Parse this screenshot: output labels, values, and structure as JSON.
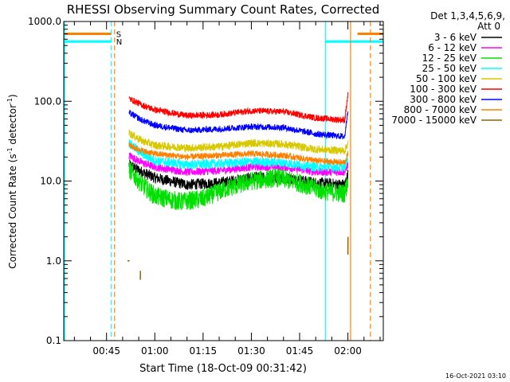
{
  "chart_data": {
    "type": "line",
    "title": "RHESSI Observing Summary Count Rates, Corrected",
    "xlabel": "Start Time (18-Oct-09 00:31:42)",
    "ylabel": "Corrected Count Rate (s⁻¹ detector⁻¹)",
    "ylabel_main": "Corrected Count Rate (s",
    "ylabel_sup1": "-1",
    "ylabel_mid": " detector",
    "ylabel_sup2": "-1",
    "ylabel_end": ")",
    "y_scale": "log",
    "ylim": [
      0.1,
      1000
    ],
    "xlim": [
      "00:31:42",
      "02:11:00"
    ],
    "x_tick_labels": [
      "00:45",
      "01:00",
      "01:15",
      "01:30",
      "01:45",
      "02:00"
    ],
    "y_tick_labels": [
      "0.1",
      "1.0",
      "10.0",
      "100.0",
      "1000.0"
    ],
    "legend": {
      "placement": "right-outside",
      "header_line1": "Det 1,3,4,5,6,9,",
      "header_line2": "Att 0",
      "entries": [
        {
          "label": "3 - 6 keV",
          "color": "#000000"
        },
        {
          "label": "6 - 12 keV",
          "color": "#ff00ff"
        },
        {
          "label": "12 - 25 keV",
          "color": "#00e000"
        },
        {
          "label": "25 - 50 keV",
          "color": "#00ffff"
        },
        {
          "label": "50 - 100 keV",
          "color": "#d8c800"
        },
        {
          "label": "100 - 300 keV",
          "color": "#ff0000"
        },
        {
          "label": "300 - 800 keV",
          "color": "#0000ff"
        },
        {
          "label": "800 - 7000 keV",
          "color": "#ff8000"
        },
        {
          "label": "7000 - 15000 keV",
          "color": "#8b6508"
        }
      ]
    },
    "series": [
      {
        "name": "3 - 6 keV",
        "color": "#000000",
        "noise": 0.07,
        "points": [
          [
            "00:52:00",
            16
          ],
          [
            "00:56:00",
            13
          ],
          [
            "01:00:00",
            11
          ],
          [
            "01:10:00",
            9
          ],
          [
            "01:20:00",
            9.5
          ],
          [
            "01:30:00",
            11
          ],
          [
            "01:40:00",
            11
          ],
          [
            "01:50:00",
            9.5
          ],
          [
            "01:59:00",
            9
          ],
          [
            "02:00:00",
            12
          ]
        ]
      },
      {
        "name": "6 - 12 keV",
        "color": "#ff00ff",
        "noise": 0.05,
        "points": [
          [
            "00:52:00",
            21
          ],
          [
            "00:56:00",
            17
          ],
          [
            "01:00:00",
            15
          ],
          [
            "01:10:00",
            13
          ],
          [
            "01:20:00",
            13.5
          ],
          [
            "01:30:00",
            15
          ],
          [
            "01:40:00",
            15
          ],
          [
            "01:50:00",
            13
          ],
          [
            "01:59:00",
            13
          ],
          [
            "02:00:00",
            16
          ]
        ]
      },
      {
        "name": "12 - 25 keV",
        "color": "#00e000",
        "noise": 0.12,
        "points": [
          [
            "00:52:00",
            14
          ],
          [
            "00:56:00",
            9
          ],
          [
            "01:00:00",
            6.5
          ],
          [
            "01:08:00",
            5.5
          ],
          [
            "01:15:00",
            6
          ],
          [
            "01:22:00",
            8
          ],
          [
            "01:30:00",
            10
          ],
          [
            "01:38:00",
            11
          ],
          [
            "01:45:00",
            9.5
          ],
          [
            "01:52:00",
            7.5
          ],
          [
            "01:59:00",
            7
          ],
          [
            "02:00:00",
            10
          ]
        ]
      },
      {
        "name": "25 - 50 keV",
        "color": "#00ffff",
        "noise": 0.06,
        "points": [
          [
            "00:52:00",
            30
          ],
          [
            "00:56:00",
            22
          ],
          [
            "01:00:00",
            18
          ],
          [
            "01:10:00",
            16
          ],
          [
            "01:20:00",
            16.5
          ],
          [
            "01:30:00",
            17.5
          ],
          [
            "01:40:00",
            17
          ],
          [
            "01:50:00",
            15
          ],
          [
            "01:59:00",
            15
          ],
          [
            "02:00:00",
            20
          ]
        ]
      },
      {
        "name": "50 - 100 keV",
        "color": "#d8c800",
        "noise": 0.05,
        "points": [
          [
            "00:52:00",
            40
          ],
          [
            "00:56:00",
            32
          ],
          [
            "01:00:00",
            28
          ],
          [
            "01:10:00",
            26
          ],
          [
            "01:20:00",
            27
          ],
          [
            "01:30:00",
            30
          ],
          [
            "01:40:00",
            29
          ],
          [
            "01:50:00",
            25
          ],
          [
            "01:59:00",
            24
          ],
          [
            "02:00:00",
            30
          ]
        ]
      },
      {
        "name": "100 - 300 keV",
        "color": "#ff0000",
        "noise": 0.04,
        "points": [
          [
            "00:52:00",
            108
          ],
          [
            "00:56:00",
            90
          ],
          [
            "01:00:00",
            78
          ],
          [
            "01:10:00",
            66
          ],
          [
            "01:20:00",
            68
          ],
          [
            "01:30:00",
            76
          ],
          [
            "01:40:00",
            74
          ],
          [
            "01:50:00",
            62
          ],
          [
            "01:59:00",
            58
          ],
          [
            "02:00:00",
            120
          ]
        ]
      },
      {
        "name": "300 - 800 keV",
        "color": "#0000ff",
        "noise": 0.04,
        "points": [
          [
            "00:52:00",
            72
          ],
          [
            "00:56:00",
            58
          ],
          [
            "01:00:00",
            50
          ],
          [
            "01:10:00",
            43
          ],
          [
            "01:20:00",
            45
          ],
          [
            "01:30:00",
            48
          ],
          [
            "01:40:00",
            47
          ],
          [
            "01:50:00",
            39
          ],
          [
            "01:59:00",
            36
          ],
          [
            "02:00:00",
            80
          ]
        ]
      },
      {
        "name": "800 - 7000 keV",
        "color": "#ff8000",
        "noise": 0.04,
        "points": [
          [
            "00:52:00",
            28
          ],
          [
            "00:56:00",
            24
          ],
          [
            "01:00:00",
            22
          ],
          [
            "01:10:00",
            20
          ],
          [
            "01:20:00",
            21
          ],
          [
            "01:30:00",
            22
          ],
          [
            "01:40:00",
            21
          ],
          [
            "01:50:00",
            18
          ],
          [
            "01:59:00",
            17
          ],
          [
            "02:00:00",
            22
          ]
        ]
      },
      {
        "name": "7000 - 15000 keV",
        "color": "#8b6508",
        "noise": 0.0,
        "segments": [
          [
            [
              "00:51:30",
              1.0
            ],
            [
              "00:52:10",
              1.0
            ]
          ],
          [
            [
              "00:55:30",
              0.58
            ],
            [
              "00:55:30",
              0.75
            ]
          ],
          [
            [
              "02:00:00",
              1.2
            ],
            [
              "02:00:00",
              2.0
            ]
          ]
        ]
      }
    ],
    "saa_flag": {
      "label": "S",
      "color": "#ff8000",
      "value": 700,
      "spans": [
        [
          "00:31:42",
          "00:46:30"
        ],
        [
          "02:03:00",
          "02:11:00"
        ]
      ]
    },
    "night_flag": {
      "label": "N",
      "color": "#00ffff",
      "value": 560,
      "spans": [
        [
          "00:31:42",
          "00:46:30"
        ],
        [
          "01:53:00",
          "02:11:00"
        ]
      ]
    },
    "vlines": [
      {
        "x": "00:31:42",
        "color": "#00ffff",
        "style": "solid"
      },
      {
        "x": "00:46:30",
        "color": "#00ffff",
        "style": "dashed"
      },
      {
        "x": "00:47:30",
        "color": "#ff8000",
        "style": "dashed"
      },
      {
        "x": "01:53:00",
        "color": "#00ffff",
        "style": "solid"
      },
      {
        "x": "02:00:50",
        "color": "#ff8000",
        "style": "solid"
      },
      {
        "x": "02:07:00",
        "color": "#ff8000",
        "style": "dashed"
      }
    ],
    "footer_timestamp": "16-Oct-2021 03:10"
  }
}
